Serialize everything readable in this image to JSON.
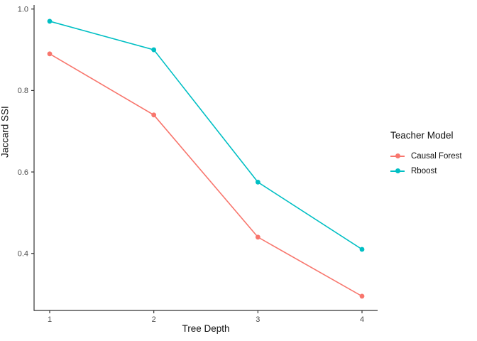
{
  "figure": {
    "background": "#ffffff",
    "axis_color": "#333333",
    "tick_text_color": "#4d4d4d"
  },
  "chart_data": {
    "type": "line",
    "title": "",
    "xlabel": "Tree Depth",
    "ylabel": "Jaccard SSI",
    "x": [
      1,
      2,
      3,
      4
    ],
    "series": [
      {
        "name": "Causal Forest",
        "color": "#F8766D",
        "values": [
          0.89,
          0.74,
          0.44,
          0.295
        ]
      },
      {
        "name": "Rboost",
        "color": "#00BFC4",
        "values": [
          0.97,
          0.9,
          0.575,
          0.41
        ]
      }
    ],
    "legend": {
      "title": "Teacher Model",
      "position": "right",
      "entries": [
        "Causal Forest",
        "Rboost"
      ]
    },
    "axes": {
      "x_ticks": [
        "1",
        "2",
        "3",
        "4"
      ],
      "y_ticks": [
        "0.4",
        "0.6",
        "0.8",
        "1.0"
      ],
      "x_domain": [
        0.85,
        4.15
      ],
      "y_domain": [
        0.26,
        1.01
      ],
      "grid": false
    }
  }
}
